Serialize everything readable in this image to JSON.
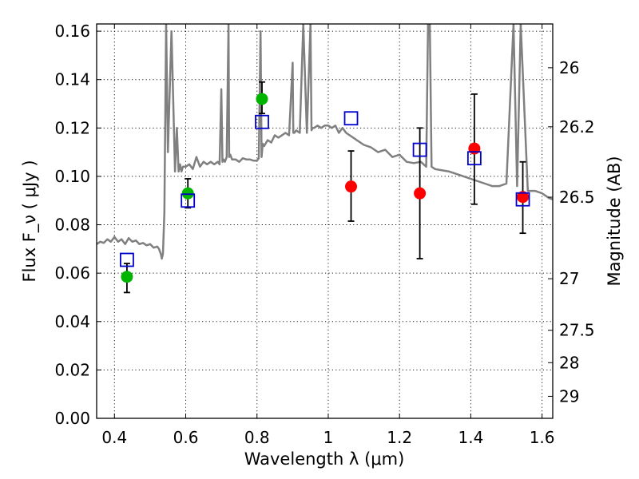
{
  "chart_data": {
    "type": "scatter",
    "title": "",
    "xlabel": "Wavelength  λ (μm)",
    "ylabel": "Flux  F_ν  ( μJy )",
    "ylabel_right": "Magnitude (AB)",
    "xlim": [
      0.35,
      1.63
    ],
    "ylim": [
      0.0,
      0.163
    ],
    "grid": true,
    "legend": "none",
    "x_ticks": [
      0.4,
      0.6,
      0.8,
      1.0,
      1.2,
      1.4,
      1.6
    ],
    "x_tick_labels": [
      "0.4",
      "0.6",
      "0.8",
      "1",
      "1.2",
      "1.4",
      "1.6"
    ],
    "y_ticks": [
      0.0,
      0.02,
      0.04,
      0.06,
      0.08,
      0.1,
      0.12,
      0.14,
      0.16
    ],
    "y_tick_labels": [
      "0.00",
      "0.02",
      "0.04",
      "0.06",
      "0.08",
      "0.10",
      "0.12",
      "0.14",
      "0.16"
    ],
    "right_ticks": [
      {
        "label": "26",
        "flux": 0.1449
      },
      {
        "label": "26.2",
        "flux": 0.1205
      },
      {
        "label": "26.5",
        "flux": 0.0914
      },
      {
        "label": "27",
        "flux": 0.0577
      },
      {
        "label": "27.5",
        "flux": 0.0364
      },
      {
        "label": "28",
        "flux": 0.023
      },
      {
        "label": "29",
        "flux": 0.0091
      }
    ],
    "colors": {
      "model": "#808080",
      "green": "#00b400",
      "red": "#ff0000",
      "square": "#0000cc",
      "error": "#000000"
    },
    "series": [
      {
        "kind": "points",
        "color": "green",
        "points": [
          {
            "x": 0.435,
            "y": 0.0585,
            "yerr": [
              0.052,
              0.064
            ]
          },
          {
            "x": 0.606,
            "y": 0.093,
            "yerr": [
              0.087,
              0.099
            ]
          },
          {
            "x": 0.814,
            "y": 0.132,
            "yerr": [
              0.126,
              0.139
            ]
          }
        ]
      },
      {
        "kind": "points",
        "color": "red",
        "points": [
          {
            "x": 1.064,
            "y": 0.0958,
            "yerr": [
              0.0815,
              0.1105
            ]
          },
          {
            "x": 1.257,
            "y": 0.093,
            "yerr": [
              0.066,
              0.12
            ]
          },
          {
            "x": 1.41,
            "y": 0.1115,
            "yerr": [
              0.0885,
              0.134
            ]
          },
          {
            "x": 1.546,
            "y": 0.0915,
            "yerr": [
              0.0765,
              0.106
            ]
          }
        ]
      },
      {
        "kind": "squares",
        "color": "square",
        "points": [
          {
            "x": 0.435,
            "y": 0.0655
          },
          {
            "x": 0.606,
            "y": 0.09
          },
          {
            "x": 0.814,
            "y": 0.1225
          },
          {
            "x": 1.064,
            "y": 0.124
          },
          {
            "x": 1.257,
            "y": 0.111
          },
          {
            "x": 1.41,
            "y": 0.1075
          },
          {
            "x": 1.546,
            "y": 0.0905
          }
        ]
      },
      {
        "kind": "line",
        "color": "model",
        "x": [
          0.35,
          0.36,
          0.37,
          0.38,
          0.39,
          0.4,
          0.41,
          0.42,
          0.43,
          0.44,
          0.45,
          0.46,
          0.47,
          0.48,
          0.49,
          0.5,
          0.51,
          0.52,
          0.525,
          0.53,
          0.533,
          0.536,
          0.54,
          0.545,
          0.55,
          0.56,
          0.57,
          0.575,
          0.58,
          0.584,
          0.588,
          0.592,
          0.6,
          0.61,
          0.62,
          0.63,
          0.64,
          0.65,
          0.66,
          0.67,
          0.68,
          0.69,
          0.695,
          0.7,
          0.703,
          0.706,
          0.71,
          0.715,
          0.72,
          0.722,
          0.725,
          0.73,
          0.74,
          0.75,
          0.76,
          0.77,
          0.78,
          0.79,
          0.8,
          0.805,
          0.81,
          0.813,
          0.816,
          0.82,
          0.83,
          0.84,
          0.85,
          0.86,
          0.87,
          0.88,
          0.89,
          0.9,
          0.902,
          0.905,
          0.91,
          0.92,
          0.93,
          0.94,
          0.95,
          0.953,
          0.956,
          0.96,
          0.97,
          0.98,
          0.99,
          1.0,
          1.01,
          1.02,
          1.03,
          1.04,
          1.05,
          1.06,
          1.07,
          1.08,
          1.09,
          1.1,
          1.12,
          1.14,
          1.16,
          1.18,
          1.2,
          1.22,
          1.24,
          1.26,
          1.275,
          1.28,
          1.285,
          1.29,
          1.3,
          1.32,
          1.34,
          1.36,
          1.38,
          1.4,
          1.42,
          1.44,
          1.46,
          1.48,
          1.5,
          1.52,
          1.53,
          1.54,
          1.56,
          1.58,
          1.6,
          1.62,
          1.63
        ],
        "y": [
          0.072,
          0.073,
          0.0725,
          0.074,
          0.073,
          0.075,
          0.073,
          0.074,
          0.072,
          0.0745,
          0.073,
          0.0735,
          0.072,
          0.0725,
          0.0715,
          0.072,
          0.0705,
          0.071,
          0.07,
          0.068,
          0.066,
          0.068,
          0.085,
          0.163,
          0.11,
          0.16,
          0.102,
          0.12,
          0.102,
          0.105,
          0.102,
          0.104,
          0.104,
          0.105,
          0.103,
          0.108,
          0.104,
          0.106,
          0.105,
          0.106,
          0.105,
          0.106,
          0.105,
          0.136,
          0.106,
          0.107,
          0.106,
          0.108,
          0.163,
          0.108,
          0.109,
          0.107,
          0.107,
          0.106,
          0.1075,
          0.107,
          0.107,
          0.1065,
          0.1065,
          0.1075,
          0.16,
          0.108,
          0.1135,
          0.1125,
          0.115,
          0.114,
          0.117,
          0.116,
          0.117,
          0.118,
          0.117,
          0.147,
          0.118,
          0.118,
          0.119,
          0.118,
          0.163,
          0.118,
          0.163,
          0.119,
          0.12,
          0.12,
          0.121,
          0.12,
          0.121,
          0.121,
          0.12,
          0.121,
          0.118,
          0.12,
          0.118,
          0.117,
          0.116,
          0.115,
          0.114,
          0.113,
          0.112,
          0.11,
          0.111,
          0.108,
          0.109,
          0.106,
          0.1055,
          0.106,
          0.104,
          0.163,
          0.163,
          0.104,
          0.103,
          0.1025,
          0.102,
          0.101,
          0.1,
          0.099,
          0.098,
          0.097,
          0.096,
          0.096,
          0.097,
          0.163,
          0.096,
          0.163,
          0.094,
          0.094,
          0.093,
          0.091,
          0.0905
        ]
      }
    ]
  }
}
